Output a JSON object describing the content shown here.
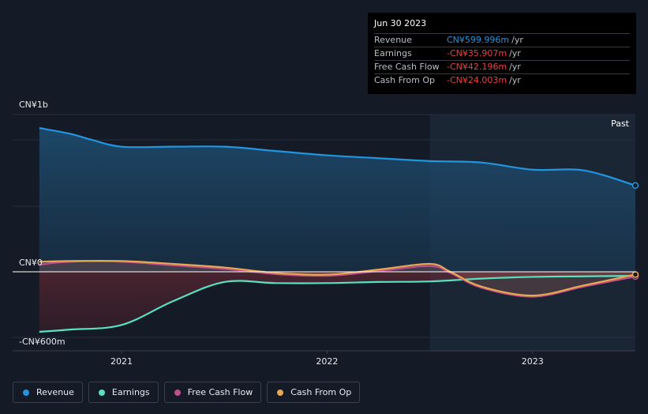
{
  "tooltip": {
    "date": "Jun 30 2023",
    "rows": [
      {
        "label": "Revenue",
        "value": "CN¥599.996m",
        "unit": "/yr",
        "color": "#2394df"
      },
      {
        "label": "Earnings",
        "value": "-CN¥35.907m",
        "unit": "/yr",
        "color": "#e64141"
      },
      {
        "label": "Free Cash Flow",
        "value": "-CN¥42.196m",
        "unit": "/yr",
        "color": "#e64141"
      },
      {
        "label": "Cash From Op",
        "value": "-CN¥24.003m",
        "unit": "/yr",
        "color": "#e64141"
      }
    ]
  },
  "past_label": "Past",
  "colors": {
    "revenue": "#2394df",
    "earnings": "#58e0c0",
    "fcf": "#c04d8e",
    "cfo": "#e8a852",
    "background": "#151b26"
  },
  "chart_data": {
    "type": "line",
    "y_unit": "CN¥",
    "ylim": [
      -600,
      1000
    ],
    "y_ticks": [
      {
        "value": 1000,
        "label": "CN¥1b"
      },
      {
        "value": 0,
        "label": "CN¥0"
      },
      {
        "value": -600,
        "label": "-CN¥600m"
      }
    ],
    "x_ticks": [
      {
        "value": 2021.0,
        "label": "2021"
      },
      {
        "value": 2022.0,
        "label": "2022"
      },
      {
        "value": 2023.0,
        "label": "2023"
      }
    ],
    "xlim": [
      2020.47,
      2023.5
    ],
    "past_from": 2022.5,
    "series": [
      {
        "name": "Revenue",
        "key": "revenue",
        "x": [
          2020.6,
          2020.75,
          2020.85,
          2021.0,
          2021.25,
          2021.5,
          2021.75,
          2022.0,
          2022.25,
          2022.5,
          2022.75,
          2023.0,
          2023.25,
          2023.5
        ],
        "y": [
          1000,
          960,
          920,
          870,
          870,
          870,
          840,
          810,
          790,
          770,
          760,
          710,
          705,
          600
        ]
      },
      {
        "name": "Earnings",
        "key": "earnings",
        "x": [
          2020.6,
          2020.75,
          2021.0,
          2021.25,
          2021.5,
          2021.75,
          2022.0,
          2022.25,
          2022.5,
          2022.75,
          2023.0,
          2023.25,
          2023.5
        ],
        "y": [
          -530,
          -510,
          -470,
          -260,
          -90,
          -100,
          -100,
          -90,
          -85,
          -60,
          -45,
          -40,
          -36
        ]
      },
      {
        "name": "Free Cash Flow",
        "key": "fcf",
        "x": [
          2020.6,
          2020.75,
          2021.0,
          2021.25,
          2021.5,
          2021.75,
          2022.0,
          2022.25,
          2022.5,
          2022.6,
          2022.75,
          2023.0,
          2023.25,
          2023.5
        ],
        "y": [
          50,
          70,
          70,
          45,
          20,
          -20,
          -35,
          5,
          40,
          -10,
          -140,
          -220,
          -130,
          -42
        ]
      },
      {
        "name": "Cash From Op",
        "key": "cfo",
        "x": [
          2020.6,
          2020.75,
          2021.0,
          2021.25,
          2021.5,
          2021.75,
          2022.0,
          2022.25,
          2022.5,
          2022.6,
          2022.75,
          2023.0,
          2023.25,
          2023.5
        ],
        "y": [
          70,
          75,
          75,
          55,
          30,
          -10,
          -25,
          15,
          55,
          0,
          -130,
          -210,
          -120,
          -24
        ]
      }
    ]
  }
}
